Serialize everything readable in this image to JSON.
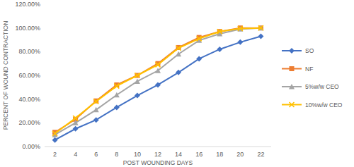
{
  "chart_data": {
    "type": "line",
    "x_label": "POST WOUNDING DAYS",
    "y_label": "PERCENT OF WOUND CONTRACTION",
    "categories": [
      "2",
      "4",
      "6",
      "8",
      "10",
      "12",
      "14",
      "16",
      "18",
      "20",
      "22"
    ],
    "series": [
      {
        "name": "SO",
        "color": "#4472c4",
        "marker": "diamond",
        "values": [
          5.5,
          15,
          22.5,
          33,
          43,
          52,
          62.5,
          74,
          82,
          88,
          93
        ]
      },
      {
        "name": "NF",
        "color": "#ed7d31",
        "marker": "square",
        "values": [
          12,
          23,
          38.5,
          52,
          60,
          70,
          83.5,
          92,
          97,
          100,
          100
        ]
      },
      {
        "name": "5%w/w CEO",
        "color": "#a5a5a5",
        "marker": "triangle",
        "values": [
          10,
          20,
          31,
          43.5,
          55,
          64,
          78,
          89.5,
          95,
          99,
          100
        ]
      },
      {
        "name": "10%w/w CEO",
        "color": "#ffc000",
        "marker": "x",
        "values": [
          11,
          24,
          38,
          51,
          60,
          69,
          83,
          91,
          97,
          99.5,
          100
        ]
      }
    ],
    "ylim": [
      0,
      120
    ],
    "yticks": [
      {
        "value": 0,
        "label": "0.00%"
      },
      {
        "value": 20,
        "label": "20.00%"
      },
      {
        "value": 40,
        "label": "40.00%"
      },
      {
        "value": 60,
        "label": "60.00%"
      },
      {
        "value": 80,
        "label": "80.00%"
      },
      {
        "value": 100,
        "label": "100.00%"
      },
      {
        "value": 120,
        "label": "120.00%"
      }
    ],
    "grid": false,
    "legend": "right"
  }
}
